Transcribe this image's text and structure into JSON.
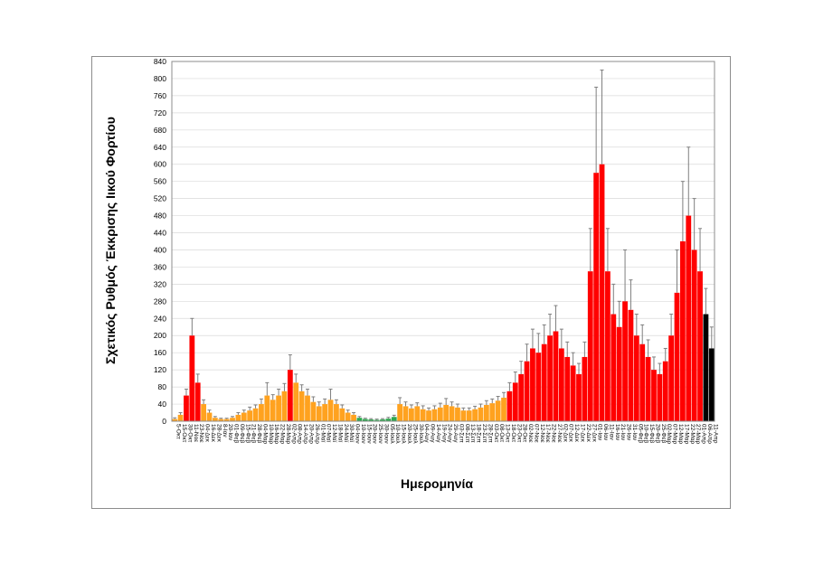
{
  "chart_data": {
    "type": "bar",
    "title": "",
    "xlabel": "Ημερομηνία",
    "ylabel": "Σχετικός Ρυθμός Έκκρισης Ιικού Φορτίου",
    "ylim": [
      0,
      840
    ],
    "yticks": [
      0,
      40,
      80,
      120,
      160,
      200,
      240,
      280,
      320,
      360,
      400,
      440,
      480,
      520,
      560,
      600,
      640,
      680,
      720,
      760,
      800,
      840
    ],
    "grid": true,
    "error_bars": true,
    "colors": {
      "orange": "#FFA21F",
      "red": "#FF0000",
      "green": "#2FA84F",
      "error": "#7f7f7f",
      "grid": "#d9d9d9"
    },
    "categories": [
      "5-Οκτ",
      "15-Οκτ",
      "30-Οκτ",
      "11-Νοε",
      "23-Νοε",
      "04-Δεκ",
      "16-Δεκ",
      "28-Δεκ",
      "8-Ιαν",
      "20-Ιαν",
      "01-Φεβ",
      "09-Φεβ",
      "15-Φεβ",
      "21-Φεβ",
      "28-Φεβ",
      "04-Μαρ",
      "10-Μαρ",
      "16-Μαρ",
      "22-Μαρ",
      "28-Μαρ",
      "02-Απρ",
      "08-Απρ",
      "14-Απρ",
      "20-Απρ",
      "26-Απρ",
      "01-Μαϊ",
      "07-Μαϊ",
      "12-Μαϊ",
      "18-Μαϊ",
      "24-Μαϊ",
      "30-Μαϊ",
      "04-Ιουν",
      "10-Ιουν",
      "15-Ιουν",
      "20-Ιουν",
      "25-Ιουν",
      "30-Ιουν",
      "05-Ιουλ",
      "10-Ιουλ",
      "15-Ιουλ",
      "20-Ιουλ",
      "25-Ιουλ",
      "30-Ιουλ",
      "04-Αυγ",
      "09-Αυγ",
      "14-Αυγ",
      "19-Αυγ",
      "24-Αυγ",
      "29-Αυγ",
      "03-Σεπ",
      "08-Σεπ",
      "13-Σεπ",
      "18-Σεπ",
      "23-Σεπ",
      "28-Σεπ",
      "03-Οκτ",
      "08-Οκτ",
      "13-Οκτ",
      "18-Οκτ",
      "23-Οκτ",
      "28-Οκτ",
      "02-Νοε",
      "07-Νοε",
      "12-Νοε",
      "17-Νοε",
      "22-Νοε",
      "27-Νοε",
      "02-Δεκ",
      "07-Δεκ",
      "12-Δεκ",
      "17-Δεκ",
      "22-Δεκ",
      "27-Δεκ",
      "01-Ιαν",
      "06-Ιαν",
      "11-Ιαν",
      "16-Ιαν",
      "21-Ιαν",
      "26-Ιαν",
      "31-Ιαν",
      "05-Φεβ",
      "10-Φεβ",
      "15-Φεβ",
      "20-Φεβ",
      "25-Φεβ",
      "02-Μαρ",
      "07-Μαρ",
      "12-Μαρ",
      "17-Μαρ",
      "22-Μαρ",
      "27-Μαρ",
      "01-Απρ",
      "06-Απρ",
      "11-Απρ"
    ],
    "values": [
      5,
      15,
      60,
      200,
      90,
      40,
      20,
      8,
      5,
      5,
      8,
      15,
      20,
      25,
      30,
      40,
      60,
      50,
      60,
      70,
      120,
      90,
      70,
      60,
      45,
      35,
      40,
      50,
      40,
      30,
      20,
      15,
      8,
      5,
      4,
      3,
      4,
      6,
      10,
      40,
      35,
      30,
      35,
      28,
      25,
      28,
      32,
      38,
      35,
      32,
      25,
      25,
      28,
      32,
      38,
      42,
      48,
      55,
      70,
      90,
      110,
      140,
      170,
      160,
      180,
      200,
      210,
      170,
      150,
      130,
      110,
      150,
      350,
      580,
      600,
      350,
      250,
      220,
      280,
      260,
      200,
      180,
      150,
      120,
      110,
      140,
      200,
      300,
      420,
      480,
      400,
      350,
      250,
      170
    ],
    "errors": [
      3,
      5,
      15,
      40,
      20,
      10,
      6,
      3,
      2,
      2,
      3,
      5,
      6,
      8,
      8,
      12,
      30,
      12,
      15,
      18,
      35,
      20,
      15,
      15,
      12,
      10,
      12,
      25,
      10,
      8,
      6,
      5,
      3,
      2,
      2,
      2,
      2,
      3,
      4,
      15,
      10,
      8,
      8,
      8,
      6,
      8,
      10,
      15,
      10,
      8,
      6,
      6,
      7,
      8,
      10,
      10,
      10,
      12,
      20,
      25,
      30,
      40,
      45,
      45,
      45,
      50,
      60,
      45,
      35,
      30,
      25,
      35,
      100,
      200,
      220,
      100,
      70,
      60,
      120,
      70,
      50,
      45,
      40,
      30,
      25,
      30,
      50,
      100,
      140,
      160,
      120,
      100,
      60,
      50
    ],
    "bar_colors": [
      "orange",
      "orange",
      "red",
      "red",
      "red",
      "orange",
      "orange",
      "orange",
      "orange",
      "orange",
      "orange",
      "orange",
      "orange",
      "orange",
      "orange",
      "orange",
      "orange",
      "orange",
      "orange",
      "orange",
      "red",
      "orange",
      "orange",
      "orange",
      "orange",
      "orange",
      "orange",
      "orange",
      "orange",
      "orange",
      "orange",
      "orange",
      "green",
      "green",
      "green",
      "green",
      "green",
      "green",
      "green",
      "orange",
      "orange",
      "orange",
      "orange",
      "orange",
      "orange",
      "orange",
      "orange",
      "orange",
      "orange",
      "orange",
      "orange",
      "orange",
      "orange",
      "orange",
      "orange",
      "orange",
      "orange",
      "orange",
      "red",
      "red",
      "red",
      "red",
      "red",
      "red",
      "red",
      "red",
      "red",
      "red",
      "red",
      "red",
      "red",
      "red",
      "red",
      "red",
      "red",
      "red",
      "red",
      "red",
      "red",
      "red",
      "red",
      "red",
      "red",
      "red",
      "red",
      "red",
      "red",
      "red",
      "red",
      "red",
      "red",
      "red"
    ]
  }
}
